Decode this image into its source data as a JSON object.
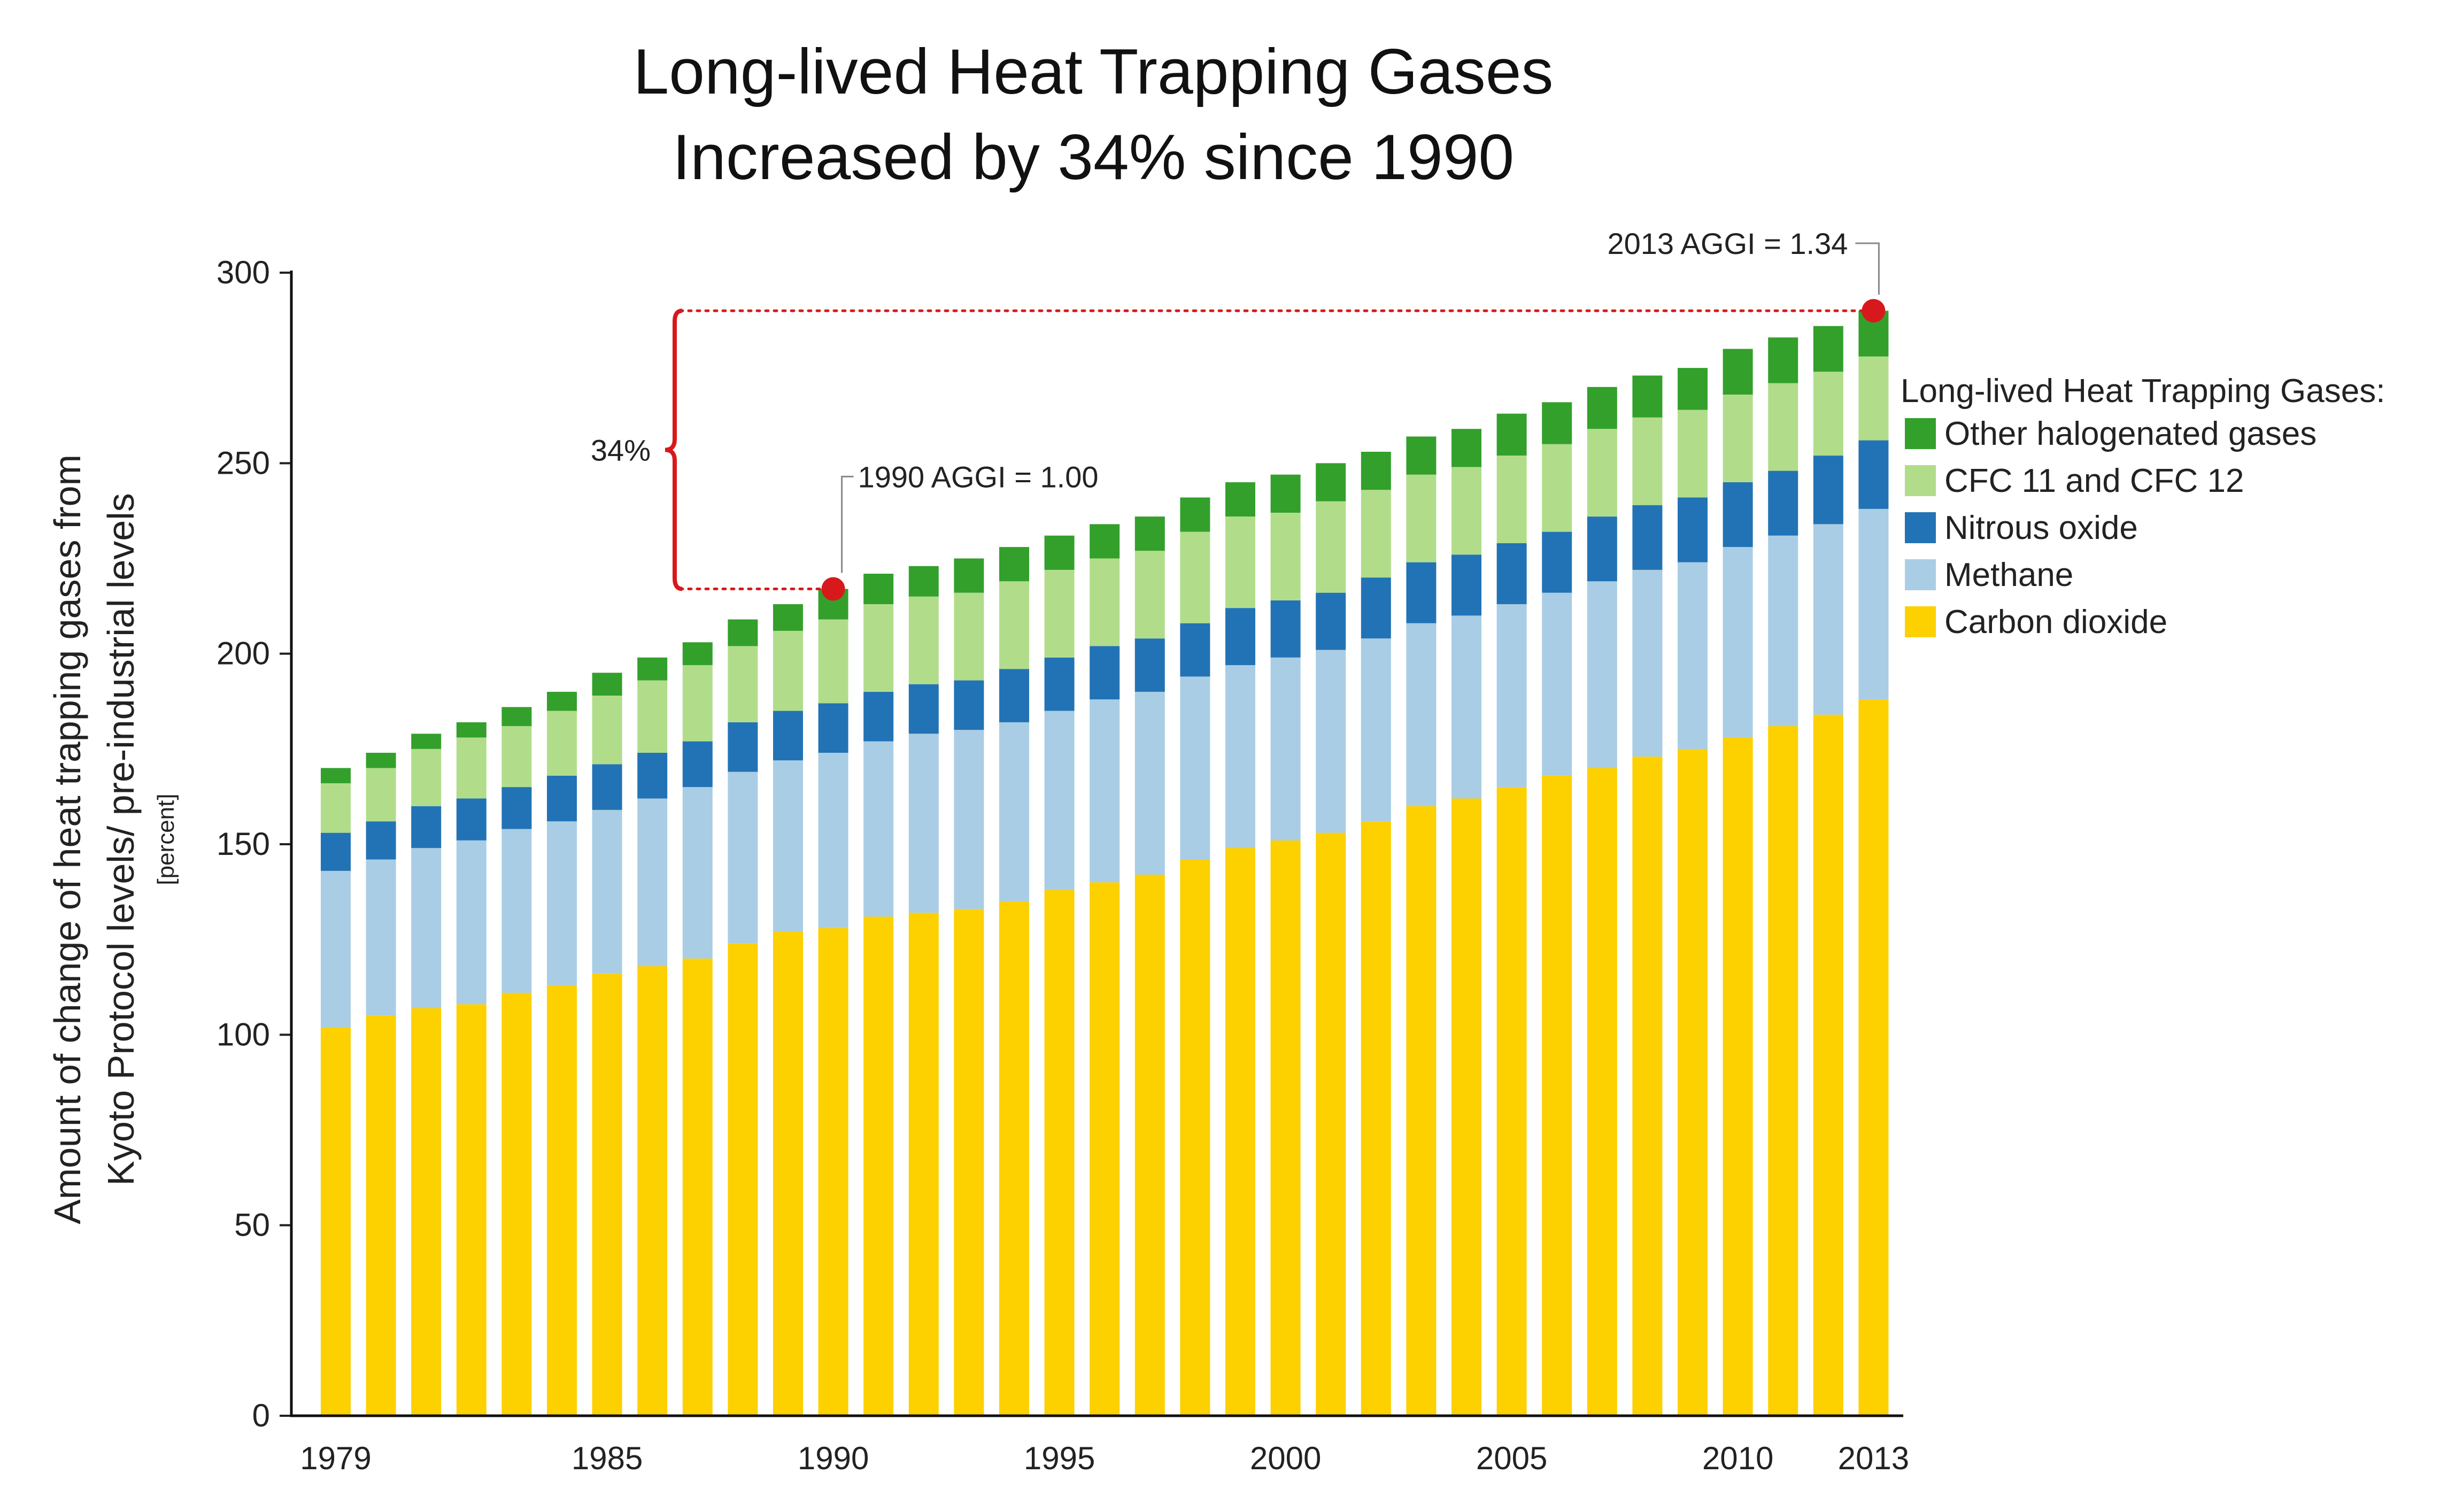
{
  "chart_data": {
    "type": "bar",
    "stacked": true,
    "title": [
      "Long-lived Heat Trapping Gases",
      "Increased by 34% since 1990"
    ],
    "ylabel": [
      "Amount of change of heat trapping gases from",
      "Kyoto Protocol levels/ pre-industrial levels"
    ],
    "yunit": "[percent]",
    "ylim": [
      0,
      300
    ],
    "yticks": [
      "0",
      "50",
      "100",
      "150",
      "200",
      "250",
      "300"
    ],
    "xtick_labels": [
      {
        "label": "1979",
        "year": 1979
      },
      {
        "label": "1985",
        "year": 1985
      },
      {
        "label": "1990",
        "year": 1990
      },
      {
        "label": "1995",
        "year": 1995
      },
      {
        "label": "2000",
        "year": 2000
      },
      {
        "label": "2005",
        "year": 2005
      },
      {
        "label": "2010",
        "year": 2010
      },
      {
        "label": "2013",
        "year": 2013
      }
    ],
    "categories": [
      1979,
      1980,
      1981,
      1982,
      1983,
      1984,
      1985,
      1986,
      1987,
      1988,
      1989,
      1990,
      1991,
      1992,
      1993,
      1994,
      1995,
      1996,
      1997,
      1998,
      1999,
      2000,
      2001,
      2002,
      2003,
      2004,
      2005,
      2006,
      2007,
      2008,
      2009,
      2010,
      2011,
      2012,
      2013
    ],
    "legend_title": "Long-lived Heat Trapping Gases:",
    "legend_position": "right",
    "legend_order": [
      "Other halogenated gases",
      "CFC 11 and CFC 12",
      "Nitrous oxide",
      "Methane",
      "Carbon dioxide"
    ],
    "series": [
      {
        "name": "Carbon dioxide",
        "color": "#fdd000",
        "values": [
          102,
          105,
          107,
          108,
          111,
          113,
          116,
          118,
          120,
          124,
          127,
          128,
          131,
          132,
          133,
          135,
          138,
          140,
          142,
          146,
          149,
          151,
          153,
          156,
          160,
          162,
          165,
          168,
          170,
          173,
          175,
          178,
          181,
          184,
          188
        ]
      },
      {
        "name": "Methane",
        "color": "#a9cde4",
        "values": [
          41,
          41,
          42,
          43,
          43,
          43,
          43,
          44,
          45,
          45,
          45,
          46,
          46,
          47,
          47,
          47,
          47,
          48,
          48,
          48,
          48,
          48,
          48,
          48,
          48,
          48,
          48,
          48,
          49,
          49,
          49,
          50,
          50,
          50,
          50
        ]
      },
      {
        "name": "Nitrous oxide",
        "color": "#2273b5",
        "values": [
          10,
          10,
          11,
          11,
          11,
          12,
          12,
          12,
          12,
          13,
          13,
          13,
          13,
          13,
          13,
          14,
          14,
          14,
          14,
          14,
          15,
          15,
          15,
          16,
          16,
          16,
          16,
          16,
          17,
          17,
          17,
          17,
          17,
          18,
          18
        ]
      },
      {
        "name": "CFC 11 and CFC 12",
        "color": "#b1dd8b",
        "values": [
          13,
          14,
          15,
          16,
          16,
          17,
          18,
          19,
          20,
          20,
          21,
          22,
          23,
          23,
          23,
          23,
          23,
          23,
          23,
          24,
          24,
          23,
          24,
          23,
          23,
          23,
          23,
          23,
          23,
          23,
          23,
          23,
          23,
          22,
          22
        ]
      },
      {
        "name": "Other halogenated gases",
        "color": "#33a02c",
        "values": [
          4,
          4,
          4,
          4,
          5,
          5,
          6,
          6,
          6,
          7,
          7,
          8,
          8,
          8,
          9,
          9,
          9,
          9,
          9,
          9,
          9,
          10,
          10,
          10,
          10,
          10,
          11,
          11,
          11,
          11,
          11,
          12,
          12,
          12,
          12
        ]
      }
    ],
    "annotations": {
      "aggi_1990": {
        "label": "1990 AGGI = 1.00",
        "year": 1990,
        "value": 217
      },
      "aggi_2013": {
        "label": "2013 AGGI = 1.34",
        "year": 2013,
        "value": 290
      },
      "increase": {
        "label": "34%",
        "from": 217,
        "to": 290
      },
      "marker_color": "#d7191c"
    }
  }
}
